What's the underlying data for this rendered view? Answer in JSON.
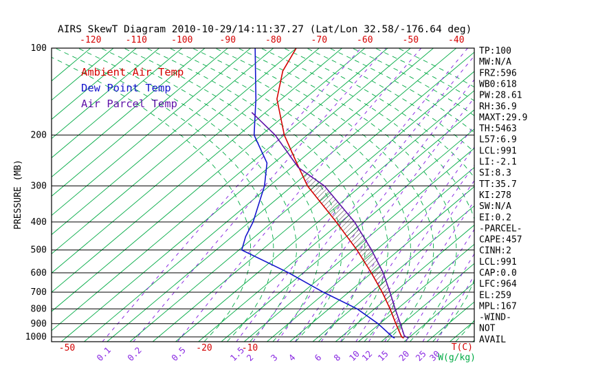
{
  "title": "AIRS SkewT Diagram 2010-10-29/14:11:37.27 (Lat/Lon 32.58/-176.64 deg)",
  "colors": {
    "background": "#ffffff",
    "green": "#00aa44",
    "red": "#d40000",
    "blue": "#1414cc",
    "purple": "#5e12a8",
    "mixing_purple": "#8a2be2",
    "black": "#000000"
  },
  "legend": [
    {
      "label": "Ambient Air Temp",
      "color": "red"
    },
    {
      "label": "Dew Point Temp",
      "color": "blue"
    },
    {
      "label": "Air Parcel Temp",
      "color": "purple"
    }
  ],
  "axes": {
    "pressure_label": "PRESSURE (MB)",
    "pressure_ticks": [
      100,
      200,
      300,
      400,
      500,
      600,
      700,
      800,
      900,
      1000
    ],
    "pressure_range": [
      100,
      1039
    ],
    "top_temp_ticks": [
      -120,
      -110,
      -100,
      -90,
      -80,
      -70,
      -60,
      -50,
      -40
    ],
    "bottom_temp_ticks": [
      -50,
      -20,
      -10
    ],
    "temp_unit_label": "T(C)",
    "mixing_unit_label": "W(g/kg)",
    "mixing_ratio_ticks": [
      "0.1",
      "0.2",
      "0.5",
      "1.5",
      "2",
      "3",
      "4",
      "6",
      "8",
      "10",
      "12",
      "15",
      "20",
      "25",
      "30"
    ]
  },
  "chart_data": {
    "type": "line",
    "x_unit": "deg C (skewed)",
    "y_unit": "hPa (log scale)",
    "isotherms": {
      "min": -120,
      "max": 45,
      "step": 5
    },
    "moist_adiabats": {
      "min": -20,
      "max": 60,
      "step": 5
    },
    "series": [
      {
        "name": "Ambient Air Temp",
        "color": "red",
        "points": [
          [
            1010,
            24
          ],
          [
            1000,
            23.2
          ],
          [
            900,
            18.5
          ],
          [
            800,
            13.4
          ],
          [
            700,
            7.3
          ],
          [
            600,
            -0.1
          ],
          [
            500,
            -9.2
          ],
          [
            400,
            -21
          ],
          [
            300,
            -36.7
          ],
          [
            250,
            -45
          ],
          [
            200,
            -55
          ],
          [
            150,
            -66
          ],
          [
            120,
            -72
          ],
          [
            100,
            -75
          ]
        ]
      },
      {
        "name": "Dew Point Temp",
        "color": "blue",
        "points": [
          [
            1010,
            22
          ],
          [
            1000,
            21.2
          ],
          [
            900,
            14.6
          ],
          [
            800,
            6.2
          ],
          [
            700,
            -5.6
          ],
          [
            600,
            -18.2
          ],
          [
            500,
            -34.4
          ],
          [
            450,
            -37
          ],
          [
            400,
            -39.2
          ],
          [
            300,
            -46.1
          ],
          [
            250,
            -51.5
          ],
          [
            200,
            -61.6
          ],
          [
            150,
            -70.6
          ],
          [
            100,
            -84
          ]
        ]
      },
      {
        "name": "Air Parcel Temp",
        "color": "purple",
        "points": [
          [
            1010,
            25
          ],
          [
            991,
            23.5
          ],
          [
            900,
            19.5
          ],
          [
            800,
            14.5
          ],
          [
            700,
            9
          ],
          [
            600,
            2.5
          ],
          [
            500,
            -6
          ],
          [
            400,
            -17
          ],
          [
            300,
            -33
          ],
          [
            259,
            -43.5
          ],
          [
            200,
            -57
          ],
          [
            167,
            -68
          ]
        ]
      }
    ],
    "cape_hatch": {
      "from_pressure": 964,
      "to_pressure": 259
    }
  },
  "stats_panel": [
    "TP:100",
    "MW:N/A",
    "FRZ:596",
    "WB0:618",
    "PW:28.61",
    "RH:36.9",
    "MAXT:29.9",
    "TH:5463",
    "L57:6.9",
    "LCL:991",
    "LI:-2.1",
    "SI:8.3",
    "TT:35.7",
    "KI:278",
    "SW:N/A",
    "EI:0.2",
    "-PARCEL-",
    "CAPE:457",
    "CINH:2",
    "LCL:991",
    "CAP:0.0",
    "LFC:964",
    "EL:259",
    "MPL:167",
    "-WIND-",
    "NOT",
    "AVAIL"
  ]
}
